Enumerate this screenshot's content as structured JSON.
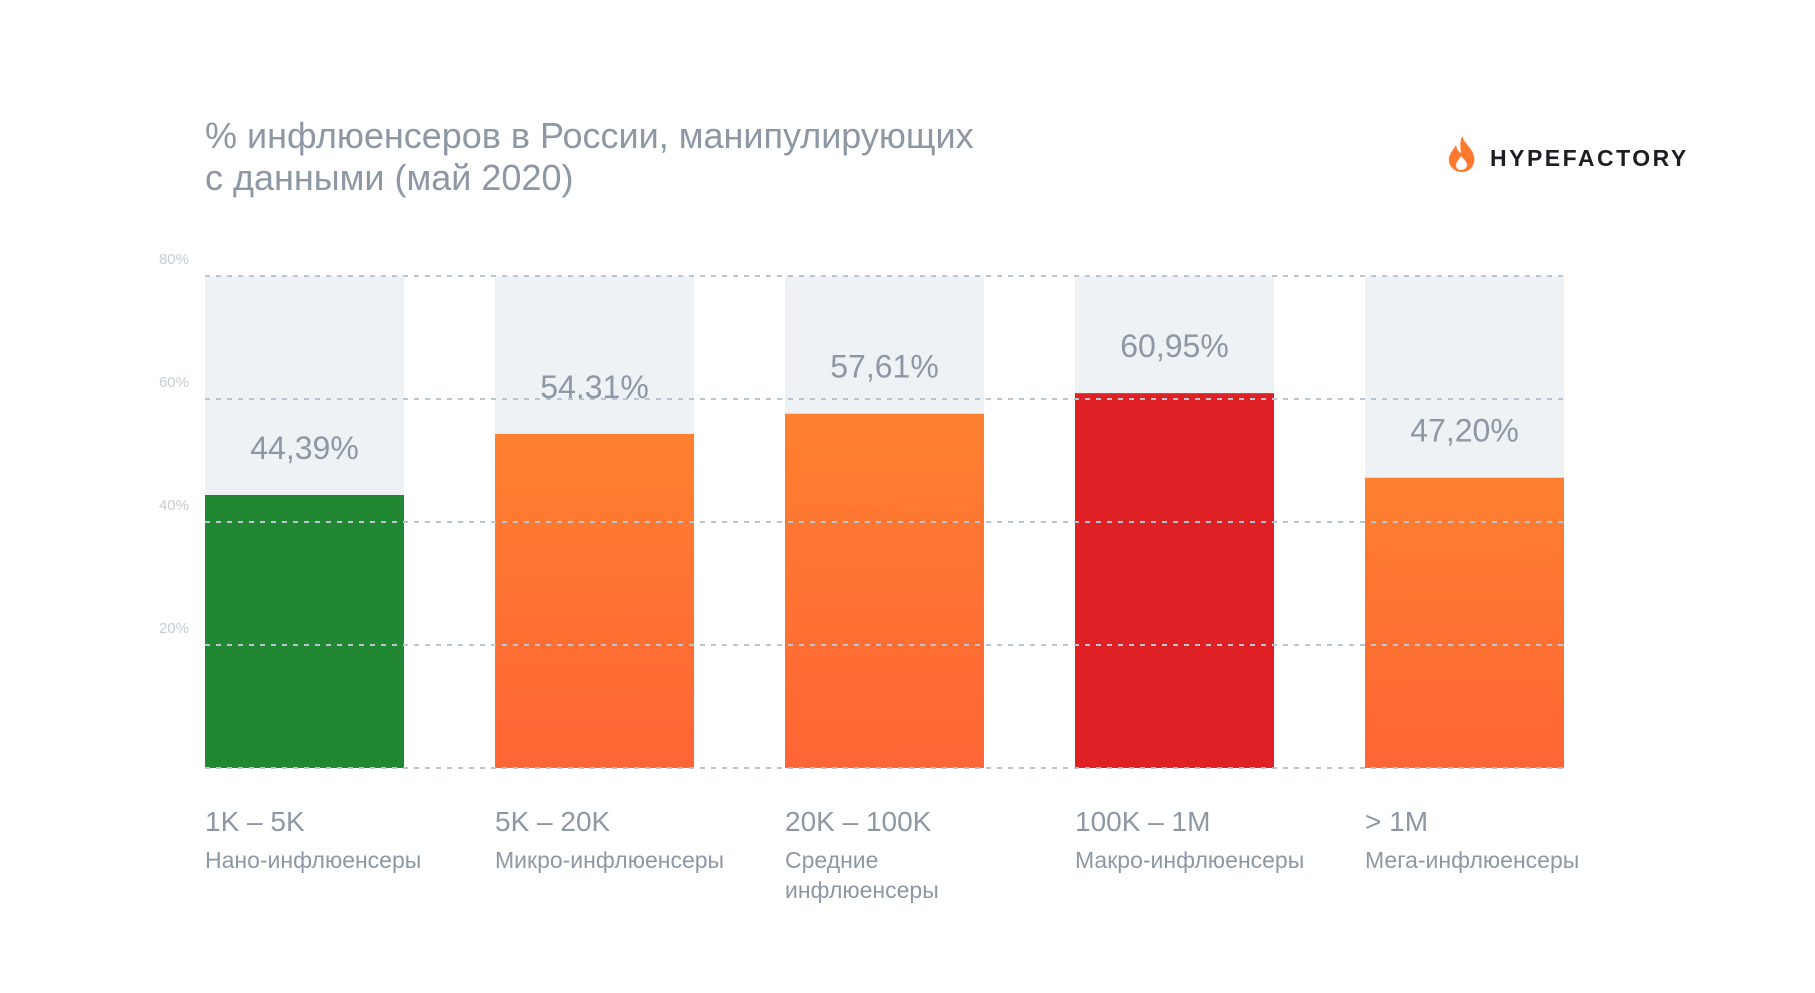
{
  "brand": {
    "name": "HYPEFACTORY",
    "flame_outer_color": "#ff7a2e",
    "flame_inner_color": "#ff9a3c"
  },
  "colors": {
    "background_column": "#eff2f5",
    "grid": "#b9c5d1",
    "green": "#218732",
    "orange_top": "#ff8030",
    "orange_bottom": "#ff6535",
    "red": "#df2125"
  },
  "chart_data": {
    "type": "bar",
    "title": "% инфлюенсеров в России, манипулирующих с данными (май 2020)",
    "title_lines": [
      "% инфлюенсеров в России, манипулирующих",
      "с данными (май 2020)"
    ],
    "categories": [
      "1K – 5K",
      "5K – 20K",
      "20K – 100K",
      "100K – 1M",
      "> 1M"
    ],
    "subcategories": [
      [
        "Нано-инфлюенсеры"
      ],
      [
        "Микро-инфлюенсеры"
      ],
      [
        "Средние",
        "инфлюенсеры"
      ],
      [
        "Макро-инфлюенсеры"
      ],
      [
        "Мега-инфлюенсеры"
      ]
    ],
    "values": [
      44.39,
      54.31,
      57.61,
      60.95,
      47.2
    ],
    "value_labels": [
      "44,39%",
      "54.31%",
      "57,61%",
      "60,95%",
      "47,20%"
    ],
    "bar_colors": [
      "green",
      "orange",
      "orange",
      "red",
      "orange"
    ],
    "yticks": [
      20,
      40,
      60,
      80
    ],
    "ytick_labels": [
      "20%",
      "40%",
      "60%",
      "80%"
    ],
    "ylim": [
      0,
      80
    ],
    "grid": true,
    "xlabel": "",
    "ylabel": ""
  }
}
